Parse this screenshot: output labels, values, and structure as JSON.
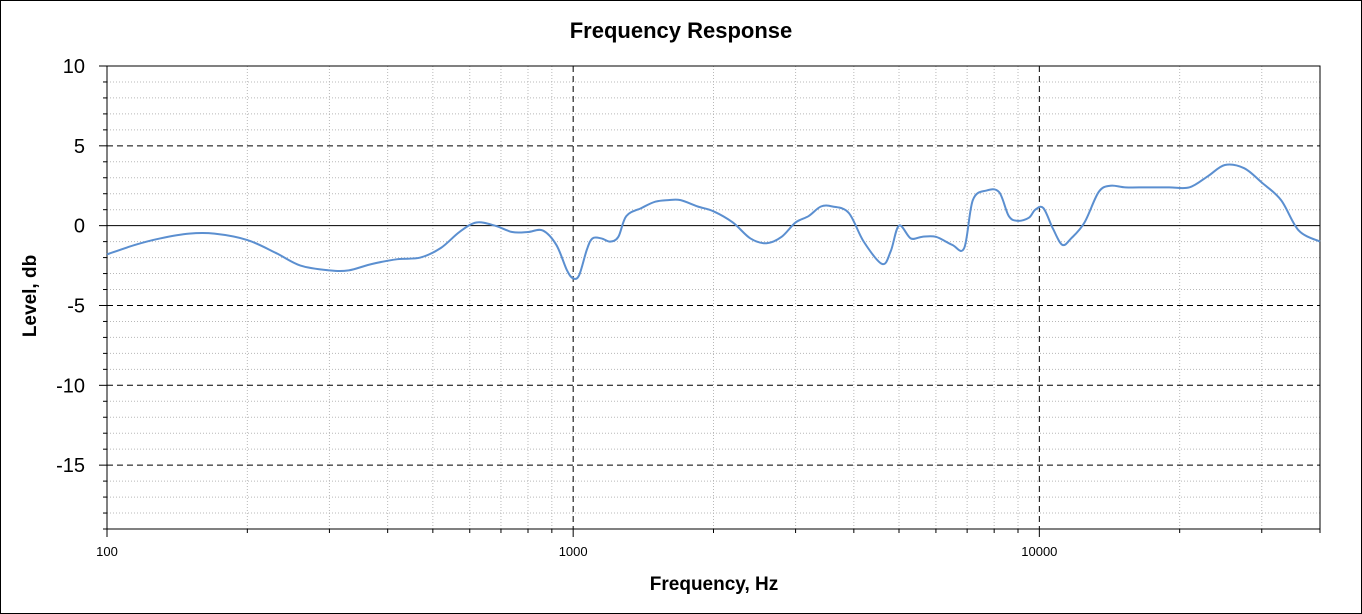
{
  "chart_data": {
    "type": "line",
    "title": "Frequency Response",
    "xlabel": "Frequency, Hz",
    "ylabel": "Level, db",
    "x_scale": "log",
    "xlim": [
      100,
      40000
    ],
    "ylim": [
      -19,
      10
    ],
    "x_ticks": [
      "100",
      "1000",
      "10000"
    ],
    "y_ticks": [
      "10",
      "5",
      "0",
      "-5",
      "-10",
      "-15"
    ],
    "grid": true,
    "line_color": "#5b8fd0",
    "series": [
      {
        "x": [
          100,
          115,
          130,
          150,
          170,
          200,
          230,
          260,
          300,
          330,
          370,
          420,
          470,
          520,
          570,
          620,
          680,
          740,
          800,
          860,
          920,
          970,
          1000,
          1030,
          1070,
          1100,
          1150,
          1200,
          1250,
          1300,
          1400,
          1500,
          1600,
          1700,
          1850,
          2000,
          2200,
          2400,
          2600,
          2800,
          3000,
          3200,
          3400,
          3600,
          3900,
          4200,
          4600,
          4800,
          5000,
          5300,
          5600,
          6000,
          6500,
          6900,
          7200,
          7700,
          8200,
          8600,
          9000,
          9500,
          9800,
          10200,
          10700,
          11200,
          11700,
          12500,
          13400,
          14200,
          15300,
          17000,
          19000,
          21000,
          23000,
          25000,
          27500,
          30000,
          33000,
          36000,
          40000
        ],
        "y": [
          -1.8,
          -1.2,
          -0.8,
          -0.5,
          -0.5,
          -0.9,
          -1.7,
          -2.5,
          -2.8,
          -2.8,
          -2.4,
          -2.1,
          -2.0,
          -1.4,
          -0.4,
          0.2,
          0.0,
          -0.4,
          -0.4,
          -0.3,
          -1.2,
          -2.8,
          -3.3,
          -3.1,
          -1.5,
          -0.8,
          -0.8,
          -1.0,
          -0.7,
          0.6,
          1.1,
          1.5,
          1.6,
          1.6,
          1.2,
          0.9,
          0.2,
          -0.8,
          -1.1,
          -0.7,
          0.2,
          0.6,
          1.2,
          1.2,
          0.8,
          -1.0,
          -2.4,
          -1.6,
          0.0,
          -0.8,
          -0.7,
          -0.7,
          -1.2,
          -1.4,
          1.6,
          2.2,
          2.1,
          0.6,
          0.3,
          0.5,
          1.0,
          1.1,
          -0.2,
          -1.2,
          -0.8,
          0.2,
          2.1,
          2.5,
          2.4,
          2.4,
          2.4,
          2.4,
          3.1,
          3.8,
          3.6,
          2.7,
          1.6,
          -0.3,
          -1.0
        ]
      }
    ]
  }
}
